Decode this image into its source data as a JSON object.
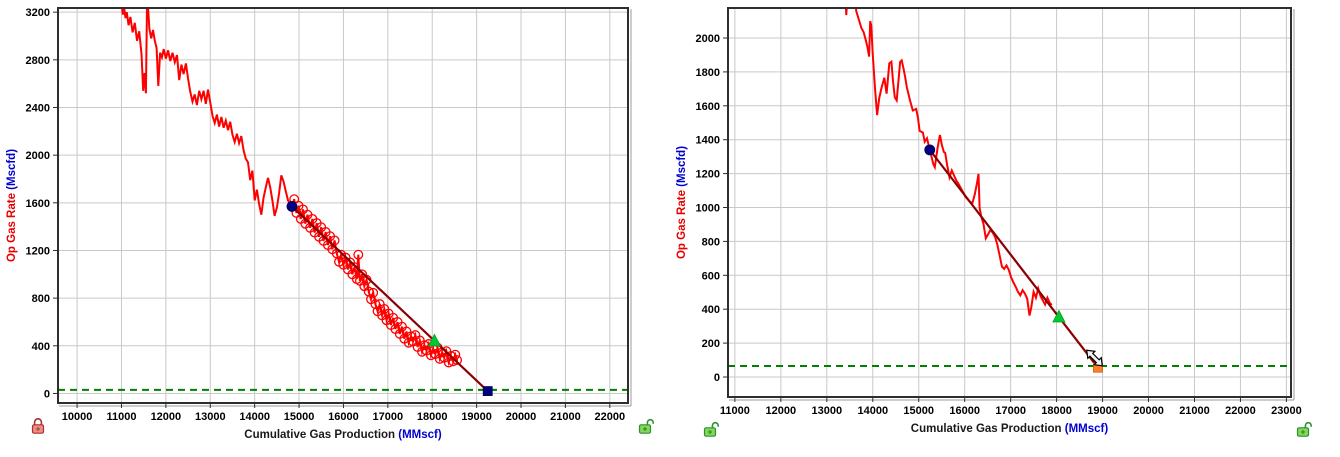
{
  "page": {
    "background": "#ffffff",
    "description": "Two decline-curve-analysis chart panels, gas rate vs cumulative production"
  },
  "styles": {
    "grid": "#c9c9c9",
    "border": "#2e2e2e",
    "shadow": "#9b9b9b",
    "history": "#ff0000",
    "trend": "#8b0000",
    "econ": "#007f00",
    "tick": "#000000",
    "xtitle": "#1a1a1a",
    "ytitle": "#e80000",
    "unit": "#0000d0",
    "cursor_fill": "#f2f2f2",
    "cursor_stroke": "#000000"
  },
  "chart_data": [
    {
      "type": "line",
      "panel": "left",
      "xlabel": "Cumulative Gas Production",
      "xlabel_unit": "(MMscf)",
      "ylabel": "Op Gas Rate",
      "ylabel_unit": "(Mscfd)",
      "x_range": [
        9570,
        22410
      ],
      "y_range": [
        -80,
        3235
      ],
      "x_ticks": [
        10000,
        11000,
        12000,
        13000,
        14000,
        15000,
        16000,
        17000,
        18000,
        19000,
        20000,
        21000,
        22000
      ],
      "y_ticks": [
        0,
        400,
        800,
        1200,
        1600,
        2000,
        2400,
        2800,
        3200
      ],
      "plot": {
        "l": 58,
        "t": 8,
        "r": 628,
        "b": 403
      },
      "econ_limit": 30,
      "scatter_from": 14860,
      "history": [
        [
          10990,
          3320
        ],
        [
          11030,
          3180
        ],
        [
          11060,
          3240
        ],
        [
          11090,
          3150
        ],
        [
          11120,
          3200
        ],
        [
          11160,
          3090
        ],
        [
          11200,
          3160
        ],
        [
          11250,
          3030
        ],
        [
          11300,
          3110
        ],
        [
          11350,
          2960
        ],
        [
          11400,
          3040
        ],
        [
          11450,
          2850
        ],
        [
          11490,
          2540
        ],
        [
          11520,
          2690
        ],
        [
          11550,
          2520
        ],
        [
          11575,
          3260
        ],
        [
          11600,
          3230
        ],
        [
          11630,
          3060
        ],
        [
          11670,
          2980
        ],
        [
          11710,
          3050
        ],
        [
          11750,
          2960
        ],
        [
          11790,
          2900
        ],
        [
          11830,
          2580
        ],
        [
          11870,
          2860
        ],
        [
          11910,
          2820
        ],
        [
          11950,
          2890
        ],
        [
          12000,
          2810
        ],
        [
          12050,
          2880
        ],
        [
          12100,
          2790
        ],
        [
          12150,
          2860
        ],
        [
          12200,
          2780
        ],
        [
          12250,
          2840
        ],
        [
          12300,
          2630
        ],
        [
          12350,
          2760
        ],
        [
          12400,
          2680
        ],
        [
          12450,
          2770
        ],
        [
          12500,
          2640
        ],
        [
          12550,
          2530
        ],
        [
          12600,
          2450
        ],
        [
          12650,
          2510
        ],
        [
          12700,
          2420
        ],
        [
          12750,
          2540
        ],
        [
          12800,
          2470
        ],
        [
          12850,
          2540
        ],
        [
          12900,
          2430
        ],
        [
          12950,
          2550
        ],
        [
          13000,
          2440
        ],
        [
          13050,
          2330
        ],
        [
          13100,
          2270
        ],
        [
          13150,
          2340
        ],
        [
          13200,
          2240
        ],
        [
          13250,
          2320
        ],
        [
          13300,
          2230
        ],
        [
          13350,
          2290
        ],
        [
          13400,
          2210
        ],
        [
          13450,
          2280
        ],
        [
          13500,
          2170
        ],
        [
          13550,
          2110
        ],
        [
          13600,
          2180
        ],
        [
          13650,
          2100
        ],
        [
          13700,
          2160
        ],
        [
          13750,
          2040
        ],
        [
          13800,
          1970
        ],
        [
          13850,
          1940
        ],
        [
          13900,
          1790
        ],
        [
          13950,
          1870
        ],
        [
          14000,
          1620
        ],
        [
          14050,
          1710
        ],
        [
          14100,
          1590
        ],
        [
          14150,
          1500
        ],
        [
          14200,
          1640
        ],
        [
          14250,
          1730
        ],
        [
          14300,
          1810
        ],
        [
          14350,
          1730
        ],
        [
          14400,
          1620
        ],
        [
          14450,
          1490
        ],
        [
          14500,
          1560
        ],
        [
          14550,
          1680
        ],
        [
          14600,
          1830
        ],
        [
          14650,
          1780
        ],
        [
          14700,
          1700
        ],
        [
          14750,
          1620
        ],
        [
          14800,
          1585
        ],
        [
          14840,
          1570
        ],
        [
          14890,
          1630
        ],
        [
          14940,
          1515
        ],
        [
          14990,
          1575
        ],
        [
          15040,
          1465
        ],
        [
          15090,
          1545
        ],
        [
          15140,
          1425
        ],
        [
          15190,
          1500
        ],
        [
          15250,
          1390
        ],
        [
          15300,
          1465
        ],
        [
          15350,
          1350
        ],
        [
          15400,
          1430
        ],
        [
          15450,
          1315
        ],
        [
          15500,
          1395
        ],
        [
          15550,
          1280
        ],
        [
          15600,
          1355
        ],
        [
          15650,
          1245
        ],
        [
          15700,
          1320
        ],
        [
          15750,
          1210
        ],
        [
          15800,
          1285
        ],
        [
          15850,
          1175
        ],
        [
          15900,
          1105
        ],
        [
          15950,
          1165
        ],
        [
          16000,
          1080
        ],
        [
          16050,
          1140
        ],
        [
          16100,
          1040
        ],
        [
          16150,
          1100
        ],
        [
          16200,
          1000
        ],
        [
          16250,
          1060
        ],
        [
          16300,
          960
        ],
        [
          16335,
          1165
        ],
        [
          16370,
          945
        ],
        [
          16420,
          1000
        ],
        [
          16470,
          900
        ],
        [
          16520,
          955
        ],
        [
          16570,
          855
        ],
        [
          16620,
          790
        ],
        [
          16670,
          845
        ],
        [
          16720,
          750
        ],
        [
          16770,
          690
        ],
        [
          16820,
          750
        ],
        [
          16870,
          655
        ],
        [
          16920,
          710
        ],
        [
          16970,
          615
        ],
        [
          17020,
          670
        ],
        [
          17070,
          575
        ],
        [
          17120,
          635
        ],
        [
          17170,
          540
        ],
        [
          17220,
          600
        ],
        [
          17270,
          500
        ],
        [
          17320,
          560
        ],
        [
          17370,
          460
        ],
        [
          17420,
          520
        ],
        [
          17470,
          425
        ],
        [
          17520,
          480
        ],
        [
          17570,
          435
        ],
        [
          17620,
          490
        ],
        [
          17670,
          390
        ],
        [
          17720,
          445
        ],
        [
          17770,
          350
        ],
        [
          17820,
          405
        ],
        [
          17870,
          360
        ],
        [
          17920,
          415
        ],
        [
          17970,
          320
        ],
        [
          18020,
          375
        ],
        [
          18070,
          330
        ],
        [
          18120,
          385
        ],
        [
          18170,
          290
        ],
        [
          18220,
          345
        ],
        [
          18270,
          300
        ],
        [
          18320,
          355
        ],
        [
          18370,
          260
        ],
        [
          18420,
          315
        ],
        [
          18470,
          270
        ],
        [
          18520,
          325
        ],
        [
          18560,
          280
        ]
      ],
      "trend": [
        [
          14840,
          1570
        ],
        [
          19250,
          20
        ]
      ],
      "markers": [
        {
          "shape": "triangle",
          "x": 18050,
          "y": 441,
          "color": "#00c832",
          "stroke": "#0f9a20",
          "name": "forecast-current-marker"
        },
        {
          "shape": "circle",
          "x": 14840,
          "y": 1570,
          "color": "#000080",
          "stroke": "#000050",
          "name": "forecast-start-marker"
        },
        {
          "shape": "square",
          "x": 19250,
          "y": 20,
          "color": "#000080",
          "stroke": "#000050",
          "name": "forecast-end-marker"
        }
      ],
      "locks": [
        {
          "x": 38,
          "y": 426,
          "state": "locked",
          "body": "#f28b82",
          "stroke": "#a83232",
          "name": "axis-lock-locked-icon"
        },
        {
          "x": 645,
          "y": 426,
          "state": "unlocked",
          "body": "#7ed957",
          "stroke": "#2f8f2f",
          "name": "axis-lock-unlocked-icon"
        }
      ]
    },
    {
      "type": "line",
      "panel": "right",
      "xlabel": "Cumulative Gas Production",
      "xlabel_unit": "(MMscf)",
      "ylabel": "Op Gas Rate",
      "ylabel_unit": "(Mscfd)",
      "x_range": [
        10850,
        23100
      ],
      "y_range": [
        -118,
        2177
      ],
      "x_ticks": [
        11000,
        12000,
        13000,
        14000,
        15000,
        16000,
        17000,
        18000,
        19000,
        20000,
        21000,
        22000,
        23000
      ],
      "y_ticks": [
        0,
        200,
        400,
        600,
        800,
        1000,
        1200,
        1400,
        1600,
        1800,
        2000
      ],
      "plot": {
        "l": 58,
        "t": 8,
        "r": 621,
        "b": 397
      },
      "econ_limit": 65,
      "scatter_from": null,
      "history": [
        [
          13395,
          2290
        ],
        [
          13425,
          2135
        ],
        [
          13455,
          2290
        ],
        [
          13600,
          2290
        ],
        [
          13640,
          2160
        ],
        [
          13690,
          2115
        ],
        [
          13750,
          2060
        ],
        [
          13800,
          2035
        ],
        [
          13850,
          1985
        ],
        [
          13885,
          1945
        ],
        [
          13920,
          1890
        ],
        [
          13945,
          2100
        ],
        [
          13965,
          2075
        ],
        [
          14000,
          1900
        ],
        [
          14050,
          1695
        ],
        [
          14095,
          1545
        ],
        [
          14140,
          1645
        ],
        [
          14190,
          1705
        ],
        [
          14250,
          1765
        ],
        [
          14300,
          1672
        ],
        [
          14360,
          1850
        ],
        [
          14405,
          1860
        ],
        [
          14440,
          1745
        ],
        [
          14480,
          1650
        ],
        [
          14520,
          1632
        ],
        [
          14560,
          1750
        ],
        [
          14595,
          1858
        ],
        [
          14630,
          1868
        ],
        [
          14670,
          1818
        ],
        [
          14705,
          1768
        ],
        [
          14740,
          1710
        ],
        [
          14810,
          1632
        ],
        [
          14870,
          1572
        ],
        [
          14945,
          1582
        ],
        [
          14985,
          1528
        ],
        [
          15020,
          1452
        ],
        [
          15090,
          1442
        ],
        [
          15130,
          1388
        ],
        [
          15180,
          1408
        ],
        [
          15240,
          1340
        ],
        [
          15280,
          1298
        ],
        [
          15315,
          1258
        ],
        [
          15350,
          1238
        ],
        [
          15410,
          1352
        ],
        [
          15460,
          1428
        ],
        [
          15505,
          1368
        ],
        [
          15545,
          1328
        ],
        [
          15575,
          1322
        ],
        [
          15620,
          1248
        ],
        [
          15670,
          1178
        ],
        [
          15720,
          1218
        ],
        [
          15770,
          1188
        ],
        [
          15820,
          1158
        ],
        [
          15870,
          1138
        ],
        [
          15920,
          1112
        ],
        [
          15970,
          1088
        ],
        [
          16020,
          1062
        ],
        [
          16070,
          1048
        ],
        [
          16120,
          1032
        ],
        [
          16170,
          1028
        ],
        [
          16220,
          1078
        ],
        [
          16270,
          1148
        ],
        [
          16300,
          1198
        ],
        [
          16325,
          998
        ],
        [
          16360,
          948
        ],
        [
          16410,
          902
        ],
        [
          16460,
          818
        ],
        [
          16510,
          842
        ],
        [
          16560,
          868
        ],
        [
          16610,
          852
        ],
        [
          16660,
          828
        ],
        [
          16710,
          782
        ],
        [
          16760,
          718
        ],
        [
          16810,
          652
        ],
        [
          16860,
          638
        ],
        [
          16910,
          658
        ],
        [
          16960,
          632
        ],
        [
          17010,
          588
        ],
        [
          17060,
          558
        ],
        [
          17110,
          532
        ],
        [
          17160,
          502
        ],
        [
          17210,
          482
        ],
        [
          17260,
          512
        ],
        [
          17310,
          492
        ],
        [
          17360,
          462
        ],
        [
          17410,
          362
        ],
        [
          17450,
          412
        ],
        [
          17500,
          502
        ],
        [
          17550,
          468
        ],
        [
          17600,
          522
        ],
        [
          17650,
          478
        ],
        [
          17700,
          452
        ],
        [
          17750,
          428
        ],
        [
          17800,
          468
        ],
        [
          17850,
          438
        ],
        [
          17895,
          425
        ]
      ],
      "trend": [
        [
          15240,
          1340
        ],
        [
          18900,
          55
        ]
      ],
      "markers": [
        {
          "shape": "triangle",
          "x": 18050,
          "y": 354,
          "color": "#00c832",
          "stroke": "#0f9a20",
          "name": "forecast-current-marker"
        },
        {
          "shape": "circle",
          "x": 15240,
          "y": 1340,
          "color": "#000080",
          "stroke": "#000050",
          "name": "forecast-start-marker"
        },
        {
          "shape": "square",
          "x": 18900,
          "y": 55,
          "color": "#ff7f27",
          "stroke": "#c85f10",
          "name": "forecast-end-marker"
        }
      ],
      "cursor": {
        "x": 18825,
        "y": 112
      },
      "locks": [
        {
          "x": 40,
          "y": 429,
          "state": "unlocked",
          "body": "#7ed957",
          "stroke": "#2f8f2f",
          "name": "axis-lock-unlocked-icon"
        },
        {
          "x": 633,
          "y": 429,
          "state": "unlocked",
          "body": "#7ed957",
          "stroke": "#2f8f2f",
          "name": "axis-lock-unlocked-icon"
        }
      ]
    }
  ]
}
